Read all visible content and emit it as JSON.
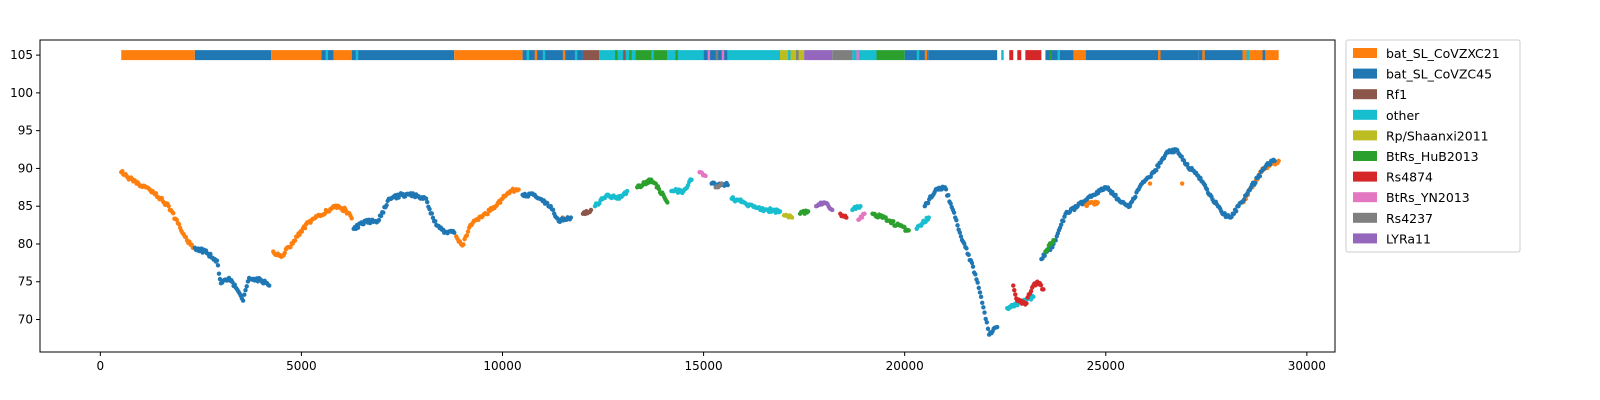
{
  "chart_data": {
    "type": "scatter",
    "title": "",
    "xlabel": "",
    "ylabel": "",
    "xlim": [
      -1500,
      30700
    ],
    "ylim": [
      65.7,
      107.0
    ],
    "x_ticks": [
      0,
      5000,
      10000,
      15000,
      20000,
      25000,
      30000
    ],
    "y_ticks": [
      70,
      75,
      80,
      85,
      90,
      95,
      100,
      105
    ],
    "grid": false,
    "legend_position": "outside right",
    "colors": {
      "bat_SL_CoVZXC21": "#ff7f0e",
      "bat_SL_CoVZC45": "#1f77b4",
      "Rf1": "#8c564b",
      "other": "#17becf",
      "Rp/Shaanxi2011": "#bcbd22",
      "BtRs_HuB2013": "#2ca02c",
      "Rs4874": "#d62728",
      "BtRs_YN2013": "#e377c2",
      "Rs4237": "#7f7f7f",
      "LYRa11": "#9467bd"
    },
    "legend": [
      "bat_SL_CoVZXC21",
      "bat_SL_CoVZC45",
      "Rf1",
      "other",
      "Rp/Shaanxi2011",
      "BtRs_HuB2013",
      "Rs4874",
      "BtRs_YN2013",
      "Rs4237",
      "LYRa11"
    ],
    "band_y": 105,
    "band_segments": [
      {
        "start": 520,
        "end": 2350,
        "series": "bat_SL_CoVZXC21"
      },
      {
        "start": 2350,
        "end": 4250,
        "series": "bat_SL_CoVZC45"
      },
      {
        "start": 4250,
        "end": 5500,
        "series": "bat_SL_CoVZXC21"
      },
      {
        "start": 5500,
        "end": 5800,
        "series": "bat_SL_CoVZC45"
      },
      {
        "start": 5800,
        "end": 6250,
        "series": "bat_SL_CoVZXC21"
      },
      {
        "start": 6250,
        "end": 8800,
        "series": "bat_SL_CoVZC45"
      },
      {
        "start": 8800,
        "end": 10500,
        "series": "bat_SL_CoVZXC21"
      },
      {
        "start": 10500,
        "end": 12000,
        "series": "bat_SL_CoVZC45"
      },
      {
        "start": 12000,
        "end": 12400,
        "series": "Rf1"
      },
      {
        "start": 12400,
        "end": 13300,
        "series": "other"
      },
      {
        "start": 13300,
        "end": 14100,
        "series": "BtRs_HuB2013"
      },
      {
        "start": 14100,
        "end": 15000,
        "series": "other"
      },
      {
        "start": 15000,
        "end": 15600,
        "series": "bat_SL_CoVZC45"
      },
      {
        "start": 15600,
        "end": 16900,
        "series": "other"
      },
      {
        "start": 16900,
        "end": 17500,
        "series": "Rp/Shaanxi2011"
      },
      {
        "start": 17500,
        "end": 18200,
        "series": "LYRa11"
      },
      {
        "start": 18200,
        "end": 18700,
        "series": "Rs4237"
      },
      {
        "start": 18700,
        "end": 19300,
        "series": "other"
      },
      {
        "start": 19300,
        "end": 20000,
        "series": "BtRs_HuB2013"
      },
      {
        "start": 20000,
        "end": 20600,
        "series": "bat_SL_CoVZC45"
      },
      {
        "start": 20600,
        "end": 22300,
        "series": "bat_SL_CoVZC45"
      },
      {
        "start": 22600,
        "end": 22700,
        "series": "Rs4874"
      },
      {
        "start": 22800,
        "end": 22900,
        "series": "Rs4874"
      },
      {
        "start": 23000,
        "end": 23400,
        "series": "Rs4874"
      },
      {
        "start": 23500,
        "end": 24200,
        "series": "bat_SL_CoVZC45"
      },
      {
        "start": 24200,
        "end": 24500,
        "series": "bat_SL_CoVZXC21"
      },
      {
        "start": 24500,
        "end": 27300,
        "series": "bat_SL_CoVZC45"
      },
      {
        "start": 27300,
        "end": 28400,
        "series": "bat_SL_CoVZC45"
      },
      {
        "start": 28400,
        "end": 29300,
        "series": "bat_SL_CoVZXC21"
      }
    ],
    "band_stripes": [
      {
        "x": 5600,
        "series": "other"
      },
      {
        "x": 6350,
        "series": "other"
      },
      {
        "x": 10600,
        "series": "other"
      },
      {
        "x": 10800,
        "series": "bat_SL_CoVZXC21"
      },
      {
        "x": 11000,
        "series": "other"
      },
      {
        "x": 11500,
        "series": "bat_SL_CoVZXC21"
      },
      {
        "x": 11800,
        "series": "other"
      },
      {
        "x": 12800,
        "series": "BtRs_HuB2013"
      },
      {
        "x": 13000,
        "series": "Rf1"
      },
      {
        "x": 13150,
        "series": "BtRs_HuB2013"
      },
      {
        "x": 13700,
        "series": "other"
      },
      {
        "x": 14300,
        "series": "BtRs_HuB2013"
      },
      {
        "x": 15100,
        "series": "BtRs_YN2013"
      },
      {
        "x": 15300,
        "series": "Rs4237"
      },
      {
        "x": 15450,
        "series": "BtRs_YN2013"
      },
      {
        "x": 17100,
        "series": "other"
      },
      {
        "x": 17300,
        "series": "Rs4237"
      },
      {
        "x": 18800,
        "series": "BtRs_YN2013"
      },
      {
        "x": 20300,
        "series": "other"
      },
      {
        "x": 20500,
        "series": "bat_SL_CoVZXC21"
      },
      {
        "x": 22400,
        "series": "other"
      },
      {
        "x": 23600,
        "series": "BtRs_HuB2013"
      },
      {
        "x": 23800,
        "series": "other"
      },
      {
        "x": 26300,
        "series": "bat_SL_CoVZXC21"
      },
      {
        "x": 27400,
        "series": "bat_SL_CoVZXC21"
      },
      {
        "x": 28500,
        "series": "other"
      },
      {
        "x": 28900,
        "series": "bat_SL_CoVZC45"
      }
    ],
    "series": [
      {
        "name": "bat_SL_CoVZXC21",
        "points": [
          [
            520,
            89.5
          ],
          [
            900,
            88.0
          ],
          [
            1300,
            87.0
          ],
          [
            1700,
            85.0
          ],
          [
            2100,
            81.0
          ],
          [
            2300,
            79.5
          ],
          [
            4300,
            79.0
          ],
          [
            4500,
            78.3
          ],
          [
            4900,
            81.0
          ],
          [
            5200,
            83.0
          ],
          [
            5500,
            83.8
          ],
          [
            5800,
            85.0
          ],
          [
            6100,
            84.5
          ],
          [
            6250,
            83.4
          ],
          [
            8850,
            81.0
          ],
          [
            9000,
            79.8
          ],
          [
            9200,
            82.5
          ],
          [
            9600,
            84.0
          ],
          [
            10000,
            86.0
          ],
          [
            10200,
            87.0
          ],
          [
            10400,
            87.2
          ],
          [
            11500,
            83.5
          ],
          [
            24500,
            85.2
          ],
          [
            24800,
            85.5
          ],
          [
            26100,
            88.0
          ],
          [
            26900,
            88.0
          ],
          [
            28400,
            85.5
          ],
          [
            28700,
            88.0
          ],
          [
            28900,
            90.0
          ],
          [
            29300,
            91.0
          ]
        ]
      },
      {
        "name": "bat_SL_CoVZC45",
        "points": [
          [
            2350,
            79.5
          ],
          [
            2600,
            79.0
          ],
          [
            2900,
            77.8
          ],
          [
            3000,
            74.8
          ],
          [
            3200,
            75.5
          ],
          [
            3400,
            74.0
          ],
          [
            3550,
            72.5
          ],
          [
            3700,
            75.5
          ],
          [
            4000,
            75.2
          ],
          [
            4200,
            74.5
          ],
          [
            6300,
            82.0
          ],
          [
            6600,
            83.0
          ],
          [
            6900,
            83.0
          ],
          [
            7200,
            86.0
          ],
          [
            7500,
            86.5
          ],
          [
            7800,
            86.5
          ],
          [
            8100,
            86.0
          ],
          [
            8300,
            83.0
          ],
          [
            8550,
            81.5
          ],
          [
            8800,
            81.5
          ],
          [
            10500,
            86.5
          ],
          [
            10800,
            86.5
          ],
          [
            11200,
            85.0
          ],
          [
            11400,
            83.0
          ],
          [
            11700,
            83.5
          ],
          [
            15200,
            88.0
          ],
          [
            15600,
            87.8
          ],
          [
            20500,
            85.0
          ],
          [
            20800,
            87.3
          ],
          [
            21000,
            87.5
          ],
          [
            21200,
            84.5
          ],
          [
            21400,
            81.0
          ],
          [
            21700,
            77.0
          ],
          [
            21900,
            73.0
          ],
          [
            22100,
            68.0
          ],
          [
            22300,
            69.0
          ],
          [
            23400,
            78.0
          ],
          [
            23700,
            80.0
          ],
          [
            24000,
            84.0
          ],
          [
            24300,
            85.0
          ],
          [
            24700,
            86.5
          ],
          [
            25000,
            87.5
          ],
          [
            25300,
            86.0
          ],
          [
            25600,
            85.0
          ],
          [
            25900,
            88.0
          ],
          [
            26200,
            89.5
          ],
          [
            26500,
            92.0
          ],
          [
            26750,
            92.5
          ],
          [
            27000,
            90.5
          ],
          [
            27300,
            89.0
          ],
          [
            27600,
            86.5
          ],
          [
            27900,
            84.0
          ],
          [
            28100,
            83.5
          ],
          [
            28300,
            85.0
          ],
          [
            29000,
            90.5
          ],
          [
            29200,
            91.0
          ]
        ]
      },
      {
        "name": "Rf1",
        "points": [
          [
            12000,
            84.0
          ],
          [
            12200,
            84.5
          ]
        ]
      },
      {
        "name": "other",
        "points": [
          [
            12300,
            85.0
          ],
          [
            12600,
            86.5
          ],
          [
            12900,
            86.0
          ],
          [
            13100,
            87.0
          ],
          [
            14200,
            87.0
          ],
          [
            14500,
            87.0
          ],
          [
            14700,
            88.5
          ],
          [
            15700,
            86.0
          ],
          [
            16000,
            85.5
          ],
          [
            16300,
            84.8
          ],
          [
            16600,
            84.5
          ],
          [
            16900,
            84.3
          ],
          [
            18700,
            84.5
          ],
          [
            18900,
            85.0
          ],
          [
            20300,
            82.0
          ],
          [
            20600,
            83.5
          ],
          [
            22550,
            71.5
          ],
          [
            23200,
            73.0
          ]
        ]
      },
      {
        "name": "Rp/Shaanxi2011",
        "points": [
          [
            17000,
            83.8
          ],
          [
            17200,
            83.5
          ]
        ]
      },
      {
        "name": "BtRs_HuB2013",
        "points": [
          [
            13350,
            87.5
          ],
          [
            13700,
            88.5
          ],
          [
            14000,
            86.5
          ],
          [
            14100,
            85.5
          ],
          [
            17400,
            84.0
          ],
          [
            17600,
            84.3
          ],
          [
            19200,
            84.0
          ],
          [
            19500,
            83.5
          ],
          [
            19800,
            82.5
          ],
          [
            20100,
            81.8
          ],
          [
            23500,
            79.0
          ],
          [
            23700,
            80.5
          ]
        ]
      },
      {
        "name": "Rs4874",
        "points": [
          [
            18400,
            84.0
          ],
          [
            18550,
            83.5
          ],
          [
            22700,
            74.5
          ],
          [
            22800,
            72.5
          ],
          [
            23000,
            72.0
          ],
          [
            23200,
            74.5
          ],
          [
            23300,
            75.0
          ],
          [
            23450,
            74.0
          ]
        ]
      },
      {
        "name": "BtRs_YN2013",
        "points": [
          [
            14900,
            89.5
          ],
          [
            15050,
            89.0
          ],
          [
            18850,
            83.2
          ],
          [
            19000,
            84.0
          ]
        ]
      },
      {
        "name": "Rs4237",
        "points": [
          [
            15300,
            87.5
          ],
          [
            15450,
            88.0
          ]
        ]
      },
      {
        "name": "LYRa11",
        "points": [
          [
            17800,
            85.0
          ],
          [
            18000,
            85.5
          ],
          [
            18200,
            84.5
          ]
        ]
      }
    ]
  }
}
